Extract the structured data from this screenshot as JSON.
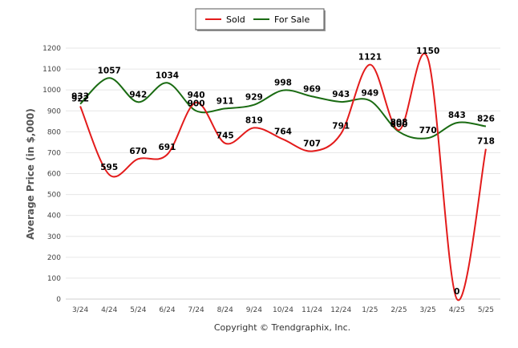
{
  "chart_data": {
    "type": "line",
    "title": "",
    "ylabel": "Average Price (in $,000)",
    "xlabel": "",
    "ylim": [
      0,
      1200
    ],
    "yticks": [
      0,
      100,
      200,
      300,
      400,
      500,
      600,
      700,
      800,
      900,
      1000,
      1100,
      1200
    ],
    "categories": [
      "3/24",
      "4/24",
      "5/24",
      "6/24",
      "7/24",
      "8/24",
      "9/24",
      "10/24",
      "11/24",
      "12/24",
      "1/25",
      "2/25",
      "3/25",
      "4/25",
      "5/25"
    ],
    "series": [
      {
        "name": "Sold",
        "color": "#e31b1b",
        "values": [
          922,
          595,
          670,
          691,
          940,
          745,
          819,
          764,
          707,
          791,
          1121,
          808,
          1150,
          0,
          718
        ]
      },
      {
        "name": "For Sale",
        "color": "#1a6b12",
        "values": [
          933,
          1057,
          942,
          1034,
          900,
          911,
          929,
          998,
          969,
          943,
          949,
          800,
          770,
          843,
          826
        ]
      }
    ],
    "grid": true,
    "legend": "top-center",
    "footer": "Copyright © Trendgraphix, Inc."
  }
}
